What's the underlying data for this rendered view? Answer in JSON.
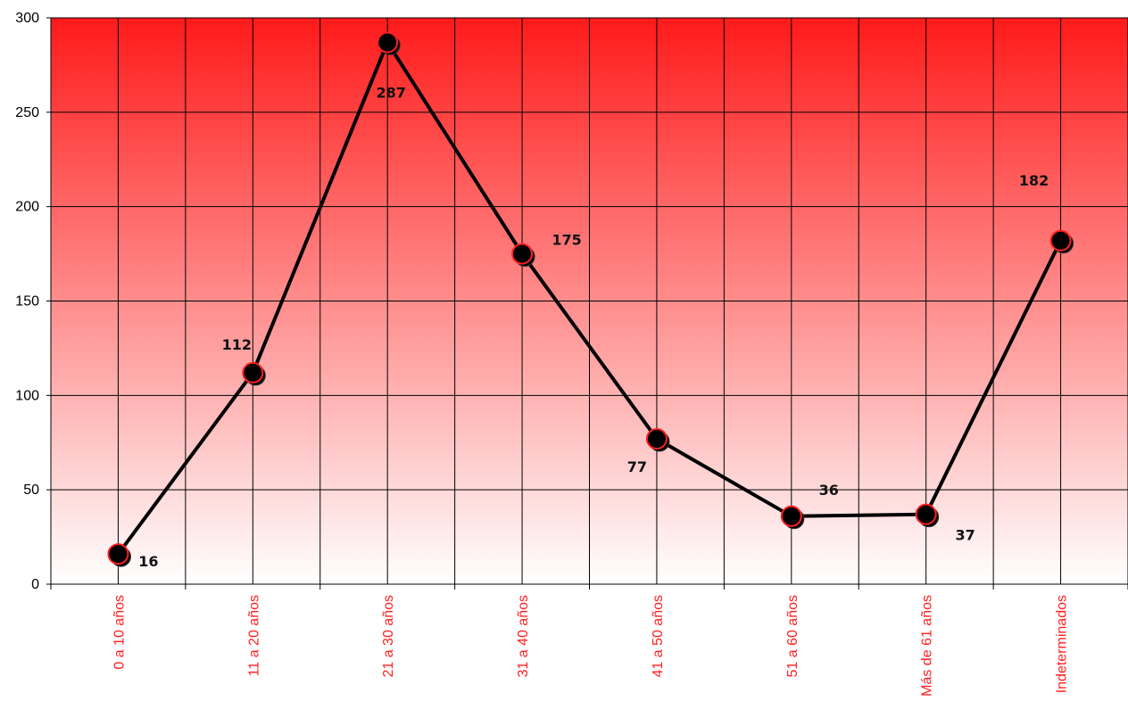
{
  "chart_data": {
    "type": "line",
    "categories": [
      "0 a 10 años",
      "11 a 20 años",
      "21 a 30 años",
      "31 a 40 años",
      "41 a 50 años",
      "51 a 60 años",
      "Más de 61 años",
      "Indeterminados"
    ],
    "series": [
      {
        "values": [
          16,
          112,
          287,
          175,
          77,
          36,
          37,
          182
        ]
      }
    ],
    "data_labels": [
      "16",
      "112",
      "287",
      "175",
      "77",
      "36",
      "37",
      "182"
    ],
    "y_ticks": [
      0,
      50,
      100,
      150,
      200,
      250,
      300
    ],
    "ylim": [
      0,
      300
    ],
    "title": "",
    "xlabel": "",
    "ylabel": "",
    "grid": true,
    "legend": "none",
    "colors": {
      "background_top": "#ff1a1a",
      "background_bottom": "#ffffff",
      "line": "#000000",
      "marker_fill": "#000000",
      "marker_outline": "#ff2020",
      "category_label": "#ff2020",
      "grid": "#000000"
    }
  }
}
